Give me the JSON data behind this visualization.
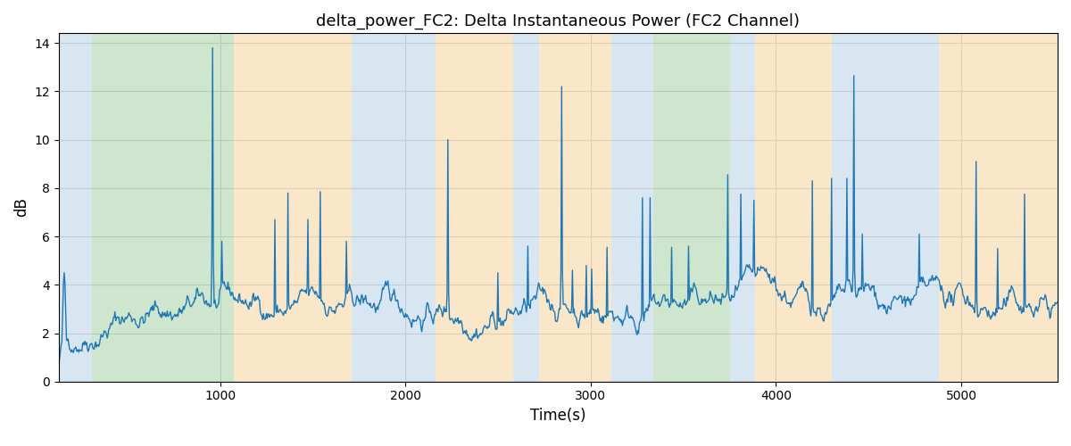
{
  "title": "delta_power_FC2: Delta Instantaneous Power (FC2 Channel)",
  "xlabel": "Time(s)",
  "ylabel": "dB",
  "xlim": [
    130,
    5520
  ],
  "ylim": [
    0,
    14.4
  ],
  "yticks": [
    0,
    2,
    4,
    6,
    8,
    10,
    12,
    14
  ],
  "xticks": [
    1000,
    2000,
    3000,
    4000,
    5000
  ],
  "line_color": "#1f77b4",
  "line_width": 1.0,
  "bg_bands": [
    {
      "xmin": 130,
      "xmax": 310,
      "color": "#aac8e0",
      "alpha": 0.45
    },
    {
      "xmin": 310,
      "xmax": 1075,
      "color": "#90c890",
      "alpha": 0.45
    },
    {
      "xmin": 1075,
      "xmax": 1710,
      "color": "#f5c888",
      "alpha": 0.45
    },
    {
      "xmin": 1710,
      "xmax": 2165,
      "color": "#aac8e0",
      "alpha": 0.45
    },
    {
      "xmin": 2165,
      "xmax": 2580,
      "color": "#f5c888",
      "alpha": 0.45
    },
    {
      "xmin": 2580,
      "xmax": 2720,
      "color": "#aac8e0",
      "alpha": 0.45
    },
    {
      "xmin": 2720,
      "xmax": 3110,
      "color": "#f5c888",
      "alpha": 0.45
    },
    {
      "xmin": 3110,
      "xmax": 3340,
      "color": "#aac8e0",
      "alpha": 0.45
    },
    {
      "xmin": 3340,
      "xmax": 3750,
      "color": "#90c890",
      "alpha": 0.45
    },
    {
      "xmin": 3750,
      "xmax": 3885,
      "color": "#aac8e0",
      "alpha": 0.45
    },
    {
      "xmin": 3885,
      "xmax": 4300,
      "color": "#f5c888",
      "alpha": 0.45
    },
    {
      "xmin": 4300,
      "xmax": 4880,
      "color": "#aac8e0",
      "alpha": 0.45
    },
    {
      "xmin": 4880,
      "xmax": 5060,
      "color": "#f5c888",
      "alpha": 0.45
    },
    {
      "xmin": 5060,
      "xmax": 5520,
      "color": "#f5c888",
      "alpha": 0.45
    }
  ],
  "figsize": [
    12.0,
    5.0
  ],
  "dpi": 100,
  "seed": 42,
  "n_points": 1300
}
